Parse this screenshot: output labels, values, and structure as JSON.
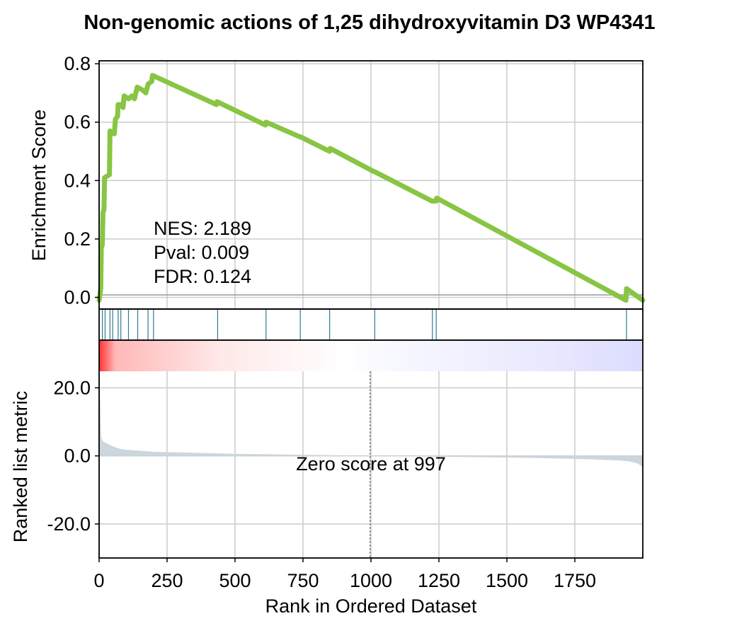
{
  "chart_data": {
    "type": "gsea_enrichment_plot",
    "title": "Non-genomic actions of 1,25 dihydroxyvitamin D3 WP4341",
    "xlabel": "Rank in Ordered Dataset",
    "xlim": [
      0,
      2000
    ],
    "x_ticks": [
      0,
      250,
      500,
      750,
      1000,
      1250,
      1500,
      1750
    ],
    "x_tick_labels": [
      "0",
      "250",
      "500",
      "750",
      "1000",
      "1250",
      "1500",
      "1750"
    ],
    "grid": true,
    "colors": {
      "es_line": "#88c544",
      "hits": "#2c7b96",
      "metric_fill": "#ccd6de",
      "positive": "#ff0000",
      "negative": "#0000ff",
      "grid": "#cccccc"
    },
    "enrichment": {
      "ylabel": "Enrichment Score",
      "ylim": [
        -0.04,
        0.81
      ],
      "y_ticks": [
        0.0,
        0.2,
        0.4,
        0.6,
        0.8
      ],
      "y_tick_labels": [
        "0.0",
        "0.2",
        "0.4",
        "0.6",
        "0.8"
      ],
      "running_es": [
        [
          0,
          -0.01
        ],
        [
          6,
          0.03
        ],
        [
          8,
          0.17
        ],
        [
          12,
          0.18
        ],
        [
          14,
          0.29
        ],
        [
          18,
          0.3
        ],
        [
          20,
          0.41
        ],
        [
          38,
          0.42
        ],
        [
          40,
          0.57
        ],
        [
          56,
          0.56
        ],
        [
          60,
          0.61
        ],
        [
          68,
          0.62
        ],
        [
          70,
          0.66
        ],
        [
          84,
          0.66
        ],
        [
          88,
          0.65
        ],
        [
          92,
          0.69
        ],
        [
          108,
          0.68
        ],
        [
          120,
          0.69
        ],
        [
          130,
          0.68
        ],
        [
          140,
          0.72
        ],
        [
          160,
          0.71
        ],
        [
          172,
          0.7
        ],
        [
          180,
          0.73
        ],
        [
          194,
          0.74
        ],
        [
          196,
          0.76
        ],
        [
          432,
          0.66
        ],
        [
          434,
          0.67
        ],
        [
          612,
          0.59
        ],
        [
          614,
          0.6
        ],
        [
          738,
          0.55
        ],
        [
          740,
          0.55
        ],
        [
          848,
          0.5
        ],
        [
          850,
          0.51
        ],
        [
          1012,
          0.43
        ],
        [
          1014,
          0.43
        ],
        [
          1224,
          0.33
        ],
        [
          1226,
          0.33
        ],
        [
          1240,
          0.33
        ],
        [
          1242,
          0.34
        ],
        [
          1938,
          -0.01
        ],
        [
          1940,
          0.03
        ],
        [
          2000,
          -0.01
        ]
      ]
    },
    "hits": [
      12,
      22,
      40,
      50,
      70,
      80,
      108,
      142,
      180,
      200,
      436,
      614,
      740,
      848,
      1014,
      1226,
      1240,
      1940
    ],
    "stats": {
      "nes": "NES: 2.189",
      "pval": "Pval: 0.009",
      "fdr": "FDR: 0.124"
    },
    "ranked_metric": {
      "ylabel": "Ranked list metric",
      "ylim": [
        -30,
        34
      ],
      "y_ticks": [
        20,
        0,
        -20
      ],
      "y_tick_labels": [
        "20.0",
        "0.0",
        "-20.0"
      ],
      "values": [
        [
          0,
          28
        ],
        [
          2,
          26
        ],
        [
          4,
          18
        ],
        [
          6,
          10
        ],
        [
          8,
          5.5
        ],
        [
          12,
          4.5
        ],
        [
          20,
          4.0
        ],
        [
          40,
          3.2
        ],
        [
          60,
          2.5
        ],
        [
          80,
          2.0
        ],
        [
          100,
          1.8
        ],
        [
          150,
          1.5
        ],
        [
          200,
          1.2
        ],
        [
          300,
          1.0
        ],
        [
          400,
          0.8
        ],
        [
          500,
          0.6
        ],
        [
          600,
          0.5
        ],
        [
          700,
          0.35
        ],
        [
          800,
          0.25
        ],
        [
          900,
          0.12
        ],
        [
          997,
          0.0
        ],
        [
          1100,
          -0.1
        ],
        [
          1200,
          -0.2
        ],
        [
          1300,
          -0.3
        ],
        [
          1400,
          -0.4
        ],
        [
          1500,
          -0.5
        ],
        [
          1600,
          -0.6
        ],
        [
          1700,
          -0.8
        ],
        [
          1800,
          -1.0
        ],
        [
          1900,
          -1.3
        ],
        [
          1950,
          -1.6
        ],
        [
          1980,
          -2.2
        ],
        [
          1995,
          -3.0
        ],
        [
          2000,
          -3.5
        ]
      ],
      "zero_score_x": 997,
      "zero_label": "Zero score at 997"
    }
  }
}
